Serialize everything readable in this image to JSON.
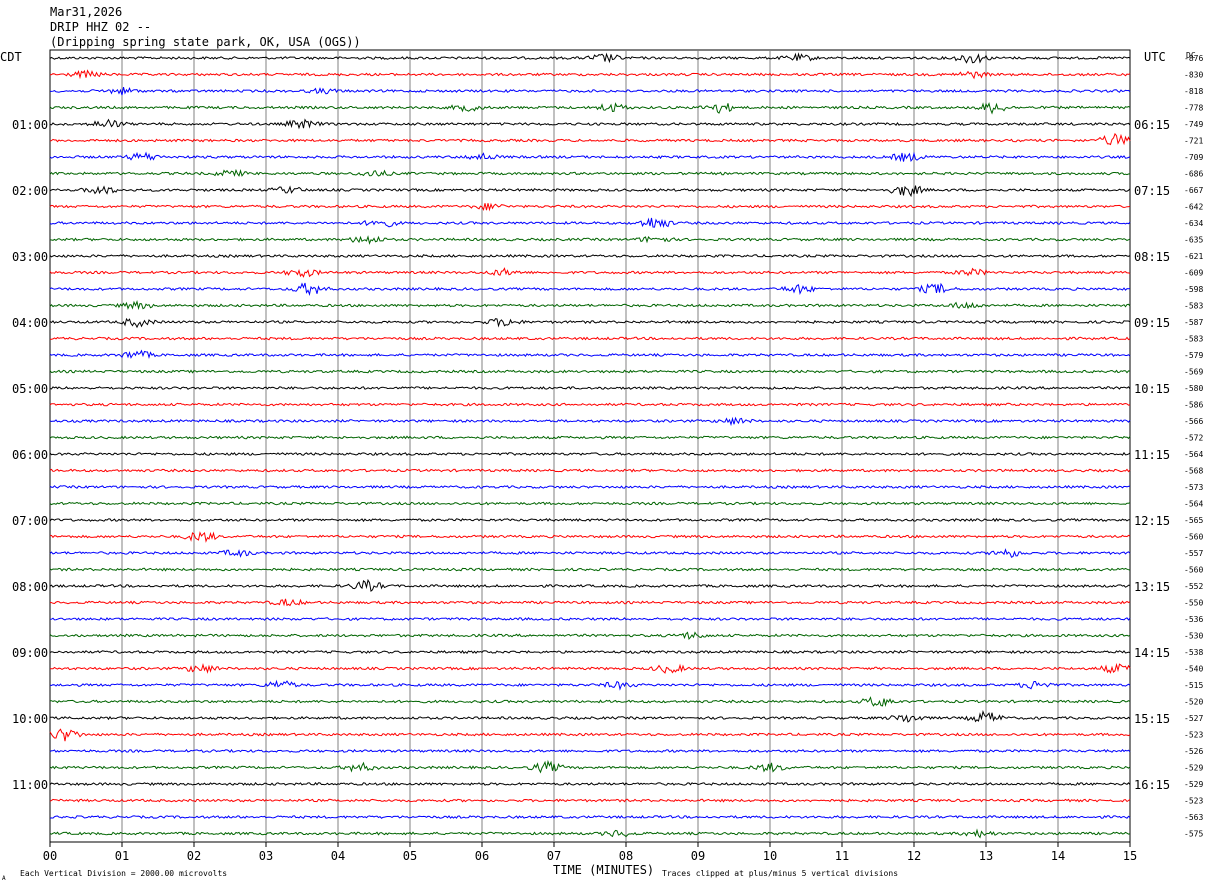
{
  "header": {
    "date": "Mar31,2026",
    "station": "DRIP HHZ 02 --",
    "location": "(Dripping spring state park, OK, USA (OGS))"
  },
  "left_axis_title": "CDT",
  "right_axis_title": "UTC",
  "dc_label": "DC",
  "footer": {
    "scale_note": "Each Vertical Division = 2000.00 microvolts",
    "clip_note": "Traces clipped at plus/minus 5 vertical divisions",
    "corner_mark": "A"
  },
  "colors": {
    "trace_cycle": [
      "#000000",
      "#ff0000",
      "#0000ff",
      "#006400"
    ],
    "grid": "#808080",
    "text": "#000000"
  },
  "chart_data": {
    "type": "line",
    "xlabel": "TIME (MINUTES)",
    "x_ticks": [
      "00",
      "01",
      "02",
      "03",
      "04",
      "05",
      "06",
      "07",
      "08",
      "09",
      "10",
      "11",
      "12",
      "13",
      "14",
      "15"
    ],
    "xlim": [
      0,
      15
    ],
    "rows": 48,
    "left_hour_labels": [
      {
        "row": 4,
        "label": "01:00"
      },
      {
        "row": 8,
        "label": "02:00"
      },
      {
        "row": 12,
        "label": "03:00"
      },
      {
        "row": 16,
        "label": "04:00"
      },
      {
        "row": 20,
        "label": "05:00"
      },
      {
        "row": 24,
        "label": "06:00"
      },
      {
        "row": 28,
        "label": "07:00"
      },
      {
        "row": 32,
        "label": "08:00"
      },
      {
        "row": 36,
        "label": "09:00"
      },
      {
        "row": 40,
        "label": "10:00"
      },
      {
        "row": 44,
        "label": "11:00"
      }
    ],
    "right_hour_labels": [
      {
        "row": 4,
        "label": "06:15"
      },
      {
        "row": 8,
        "label": "07:15"
      },
      {
        "row": 12,
        "label": "08:15"
      },
      {
        "row": 16,
        "label": "09:15"
      },
      {
        "row": 20,
        "label": "10:15"
      },
      {
        "row": 24,
        "label": "11:15"
      },
      {
        "row": 28,
        "label": "12:15"
      },
      {
        "row": 32,
        "label": "13:15"
      },
      {
        "row": 36,
        "label": "14:15"
      },
      {
        "row": 40,
        "label": "15:15"
      },
      {
        "row": 44,
        "label": "16:15"
      }
    ],
    "dc_offsets": [
      "-876",
      "-830",
      "-818",
      "-778",
      "-749",
      "-721",
      "-709",
      "-686",
      "-667",
      "-642",
      "-634",
      "-635",
      "-621",
      "-609",
      "-598",
      "-583",
      "-587",
      "-583",
      "-579",
      "-569",
      "-580",
      "-586",
      "-566",
      "-572",
      "-564",
      "-568",
      "-573",
      "-564",
      "-565",
      "-560",
      "-557",
      "-560",
      "-552",
      "-550",
      "-536",
      "-530",
      "-538",
      "-540",
      "-515",
      "-520",
      "-527",
      "-523",
      "-526",
      "-529",
      "-529",
      "-523",
      "-563",
      "-575"
    ],
    "bursts": [
      {
        "row": 0,
        "min": 7.7,
        "amp": 4
      },
      {
        "row": 0,
        "min": 10.4,
        "amp": 3
      },
      {
        "row": 0,
        "min": 12.8,
        "amp": 5
      },
      {
        "row": 1,
        "min": 0.5,
        "amp": 3
      },
      {
        "row": 1,
        "min": 12.8,
        "amp": 3
      },
      {
        "row": 2,
        "min": 1.0,
        "amp": 3
      },
      {
        "row": 2,
        "min": 3.8,
        "amp": 2
      },
      {
        "row": 3,
        "min": 5.8,
        "amp": 3
      },
      {
        "row": 3,
        "min": 7.8,
        "amp": 4
      },
      {
        "row": 3,
        "min": 9.3,
        "amp": 5
      },
      {
        "row": 3,
        "min": 13.1,
        "amp": 5
      },
      {
        "row": 4,
        "min": 0.8,
        "amp": 4
      },
      {
        "row": 4,
        "min": 3.5,
        "amp": 4
      },
      {
        "row": 5,
        "min": 14.8,
        "amp": 6
      },
      {
        "row": 6,
        "min": 1.3,
        "amp": 4
      },
      {
        "row": 6,
        "min": 6.0,
        "amp": 3
      },
      {
        "row": 6,
        "min": 11.9,
        "amp": 4
      },
      {
        "row": 7,
        "min": 2.5,
        "amp": 3
      },
      {
        "row": 7,
        "min": 4.5,
        "amp": 3
      },
      {
        "row": 8,
        "min": 0.7,
        "amp": 4
      },
      {
        "row": 8,
        "min": 3.3,
        "amp": 3
      },
      {
        "row": 8,
        "min": 11.9,
        "amp": 6
      },
      {
        "row": 9,
        "min": 6.1,
        "amp": 3
      },
      {
        "row": 10,
        "min": 4.6,
        "amp": 4
      },
      {
        "row": 10,
        "min": 8.4,
        "amp": 6
      },
      {
        "row": 11,
        "min": 4.4,
        "amp": 4
      },
      {
        "row": 11,
        "min": 8.4,
        "amp": 3
      },
      {
        "row": 13,
        "min": 3.5,
        "amp": 4
      },
      {
        "row": 13,
        "min": 6.3,
        "amp": 3
      },
      {
        "row": 13,
        "min": 12.8,
        "amp": 3
      },
      {
        "row": 14,
        "min": 3.6,
        "amp": 6
      },
      {
        "row": 14,
        "min": 10.4,
        "amp": 4
      },
      {
        "row": 14,
        "min": 12.3,
        "amp": 5
      },
      {
        "row": 15,
        "min": 1.2,
        "amp": 3
      },
      {
        "row": 15,
        "min": 12.7,
        "amp": 3
      },
      {
        "row": 16,
        "min": 1.2,
        "amp": 4
      },
      {
        "row": 16,
        "min": 6.3,
        "amp": 4
      },
      {
        "row": 18,
        "min": 1.2,
        "amp": 4
      },
      {
        "row": 22,
        "min": 9.5,
        "amp": 3
      },
      {
        "row": 29,
        "min": 2.1,
        "amp": 5
      },
      {
        "row": 30,
        "min": 2.6,
        "amp": 3
      },
      {
        "row": 30,
        "min": 13.3,
        "amp": 4
      },
      {
        "row": 32,
        "min": 4.4,
        "amp": 5
      },
      {
        "row": 33,
        "min": 3.3,
        "amp": 3
      },
      {
        "row": 35,
        "min": 8.9,
        "amp": 3
      },
      {
        "row": 37,
        "min": 2.1,
        "amp": 4
      },
      {
        "row": 37,
        "min": 8.6,
        "amp": 4
      },
      {
        "row": 37,
        "min": 14.8,
        "amp": 4
      },
      {
        "row": 38,
        "min": 3.2,
        "amp": 4
      },
      {
        "row": 38,
        "min": 7.9,
        "amp": 3
      },
      {
        "row": 38,
        "min": 13.7,
        "amp": 4
      },
      {
        "row": 39,
        "min": 11.5,
        "amp": 5
      },
      {
        "row": 40,
        "min": 11.9,
        "amp": 4
      },
      {
        "row": 40,
        "min": 13.0,
        "amp": 6
      },
      {
        "row": 41,
        "min": 0.2,
        "amp": 6
      },
      {
        "row": 43,
        "min": 4.3,
        "amp": 4
      },
      {
        "row": 43,
        "min": 6.9,
        "amp": 5
      },
      {
        "row": 43,
        "min": 10.0,
        "amp": 4
      },
      {
        "row": 47,
        "min": 7.9,
        "amp": 3
      },
      {
        "row": 47,
        "min": 12.9,
        "amp": 3
      }
    ]
  }
}
